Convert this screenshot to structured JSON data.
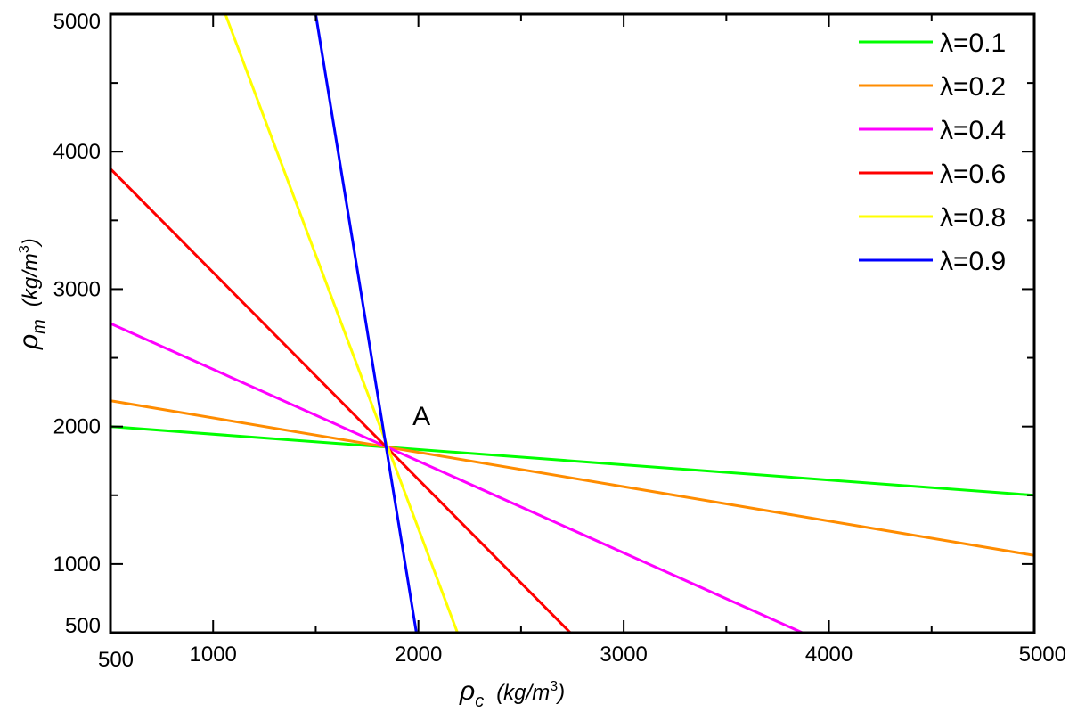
{
  "chart_data": {
    "type": "line",
    "xlim": [
      500,
      5000
    ],
    "ylim": [
      500,
      5000
    ],
    "x_ticks": [
      500,
      1000,
      2000,
      3000,
      4000,
      5000
    ],
    "y_ticks": [
      500,
      1000,
      2000,
      3000,
      4000,
      5000
    ],
    "x_tick_labels": [
      "500",
      "1000",
      "2000",
      "3000",
      "4000",
      "5000"
    ],
    "y_tick_labels": [
      "500",
      "1000",
      "2000",
      "3000",
      "4000",
      "5000"
    ],
    "xlabel_symbol": "ρ",
    "xlabel_sub": "c",
    "xlabel_unit": "(kg/m",
    "xlabel_sup": "3",
    "xlabel_close": ")",
    "ylabel_symbol": "ρ",
    "ylabel_sub": "m",
    "ylabel_unit": "(kg/m",
    "ylabel_sup": "3",
    "ylabel_close": ")",
    "legend_position": "top-right",
    "grid": false,
    "annotations": [
      {
        "text": "A",
        "x": 1850,
        "y": 1850
      }
    ],
    "series": [
      {
        "name": "λ=0.1",
        "color": "#00ff00",
        "x": [
          500,
          5000
        ],
        "y": [
          2000,
          1500
        ]
      },
      {
        "name": "λ=0.2",
        "color": "#ff8c00",
        "x": [
          500,
          5000
        ],
        "y": [
          2188,
          1062
        ]
      },
      {
        "name": "λ=0.4",
        "color": "#ff00ff",
        "x": [
          500,
          3870
        ],
        "y": [
          2750,
          500
        ]
      },
      {
        "name": "λ=0.6",
        "color": "#ff0000",
        "x": [
          500,
          2740
        ],
        "y": [
          3875,
          500
        ]
      },
      {
        "name": "λ=0.8",
        "color": "#ffff00",
        "x": [
          1060,
          2190
        ],
        "y": [
          5000,
          500
        ]
      },
      {
        "name": "λ=0.9",
        "color": "#0000ff",
        "x": [
          1500,
          1990
        ],
        "y": [
          5000,
          500
        ]
      }
    ]
  }
}
